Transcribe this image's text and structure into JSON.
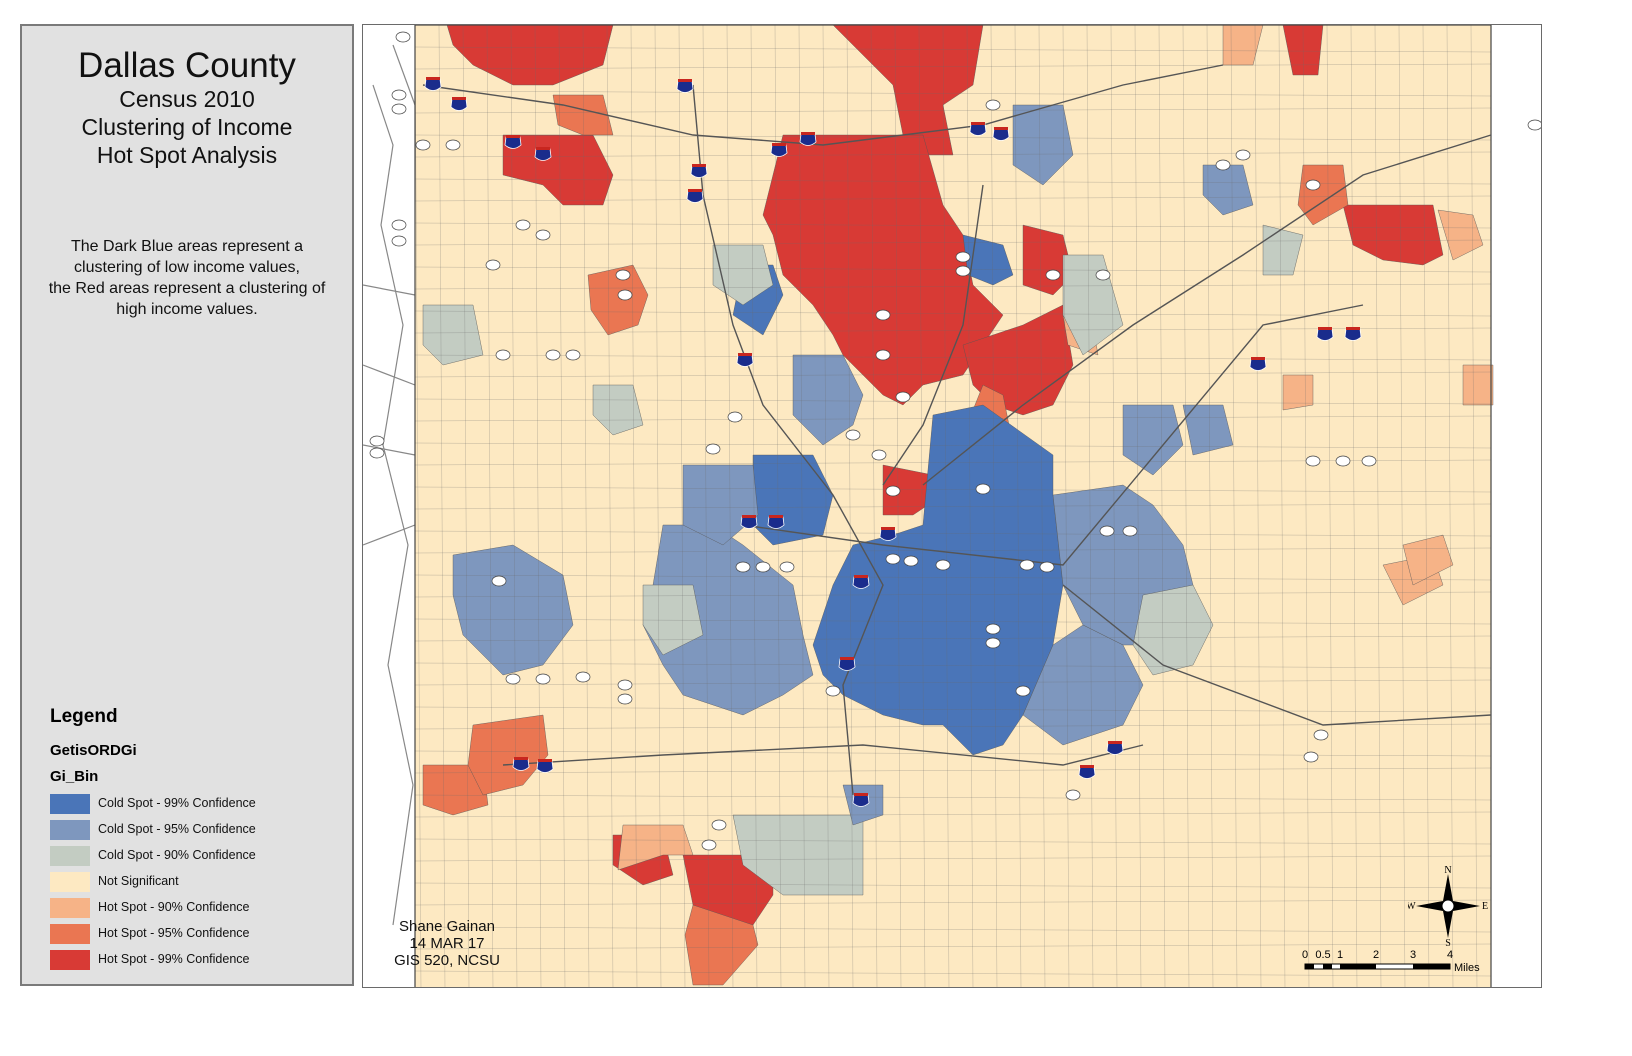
{
  "title": "Dallas County",
  "subtitle_lines": [
    "Census 2010",
    "Clustering of Income",
    "Hot Spot Analysis"
  ],
  "description_lines": [
    "The Dark Blue areas represent a",
    "clustering of low income values,",
    "the Red areas represent a clustering of",
    "high income values."
  ],
  "legend": {
    "title": "Legend",
    "layer": "GetisORDGi",
    "field": "Gi_Bin",
    "items": [
      {
        "label": "Cold Spot - 99% Confidence",
        "color": "#4a75b8"
      },
      {
        "label": "Cold Spot - 95% Confidence",
        "color": "#7e97be"
      },
      {
        "label": "Cold Spot - 90% Confidence",
        "color": "#c3ccc2"
      },
      {
        "label": "Not Significant",
        "color": "#fde9c2"
      },
      {
        "label": "Hot Spot - 90% Confidence",
        "color": "#f6b387"
      },
      {
        "label": "Hot Spot - 95% Confidence",
        "color": "#ea7652"
      },
      {
        "label": "Hot Spot - 99% Confidence",
        "color": "#d83a35"
      }
    ]
  },
  "credits": [
    "Shane Gainan",
    "14 MAR 17",
    "GIS 520, NCSU"
  ],
  "compass": {
    "n": "N",
    "s": "S",
    "e": "E",
    "w": "W"
  },
  "scale": {
    "ticks": [
      "0",
      "0.5",
      "1",
      "2",
      "3",
      "4"
    ],
    "unit": "Miles"
  },
  "highways": {
    "interstate": [
      "635",
      "635",
      "635",
      "635",
      "635",
      "635",
      "635",
      "635",
      "35E",
      "35E",
      "35E",
      "35E",
      "35E",
      "35E",
      "35E",
      "35E",
      "30",
      "30",
      "30",
      "30",
      "30",
      "20",
      "20",
      "20",
      "20",
      "45",
      "45"
    ],
    "us_state": [
      "75",
      "75",
      "75",
      "75",
      "175",
      "175",
      "175",
      "175",
      "67",
      "67",
      "67",
      "80",
      "80",
      "80",
      "12",
      "66",
      "78",
      "78",
      "190",
      "190",
      "114",
      "114",
      "114",
      "114",
      "348",
      "348",
      "161",
      "183",
      "183",
      "356",
      "356",
      "356",
      "354",
      "354",
      "352",
      "352",
      "342",
      "342",
      "180",
      "180",
      "180",
      "180",
      "303",
      "303",
      "303",
      "408",
      "408",
      "310",
      "310",
      "310",
      "289",
      "289",
      "289",
      "244",
      "244",
      "97",
      "97",
      "360",
      "360",
      "121",
      "121",
      "26",
      "66",
      "78"
    ]
  }
}
